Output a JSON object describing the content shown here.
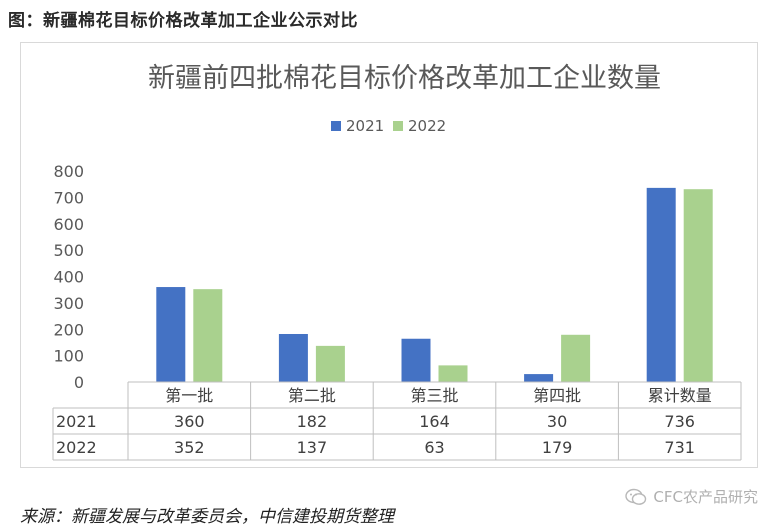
{
  "caption": "图：新疆棉花目标价格改革加工企业公示对比",
  "source": "来源：新疆发展与改革委员会，中信建投期货整理",
  "watermark": "CFC农产品研究",
  "chart_data": {
    "type": "bar",
    "title": "新疆前四批棉花目标价格改革加工企业数量",
    "categories": [
      "第一批",
      "第二批",
      "第三批",
      "第四批",
      "累计数量"
    ],
    "series": [
      {
        "name": "2021",
        "values": [
          360,
          182,
          164,
          30,
          736
        ],
        "color": "#4472c4"
      },
      {
        "name": "2022",
        "values": [
          352,
          137,
          63,
          179,
          731
        ],
        "color": "#a9d18e"
      }
    ],
    "ylim": [
      0,
      800
    ],
    "yticks": [
      0,
      100,
      200,
      300,
      400,
      500,
      600,
      700,
      800
    ],
    "legend_position": "top-center",
    "grid": false,
    "data_table": true
  }
}
